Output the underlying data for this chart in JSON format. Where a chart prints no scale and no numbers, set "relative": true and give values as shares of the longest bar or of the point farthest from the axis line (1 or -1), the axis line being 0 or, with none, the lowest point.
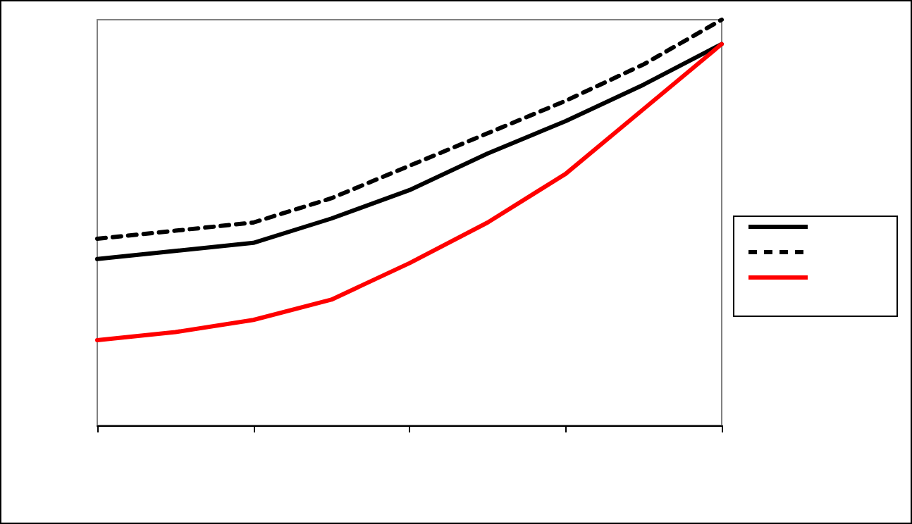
{
  "chart_data": {
    "type": "line",
    "relative": true,
    "categories": [
      null,
      null,
      null,
      null,
      null,
      null,
      null,
      null,
      null
    ],
    "marker": "none",
    "line_style": "solid",
    "grid": false,
    "series": [
      {
        "color": "#000000",
        "values": [
          0.41,
          0.43,
          0.45,
          0.51,
          0.58,
          0.67,
          0.75,
          0.84,
          0.94
        ]
      },
      {
        "color": "#000000",
        "line_style": "dashed",
        "values": [
          0.46,
          0.48,
          0.5,
          0.56,
          0.64,
          0.72,
          0.8,
          0.89,
          1
        ]
      },
      {
        "color": "#ff0000",
        "values": [
          0.21,
          0.23,
          0.26,
          0.31,
          0.4,
          0.5,
          0.62,
          0.78,
          0.94
        ]
      }
    ]
  }
}
